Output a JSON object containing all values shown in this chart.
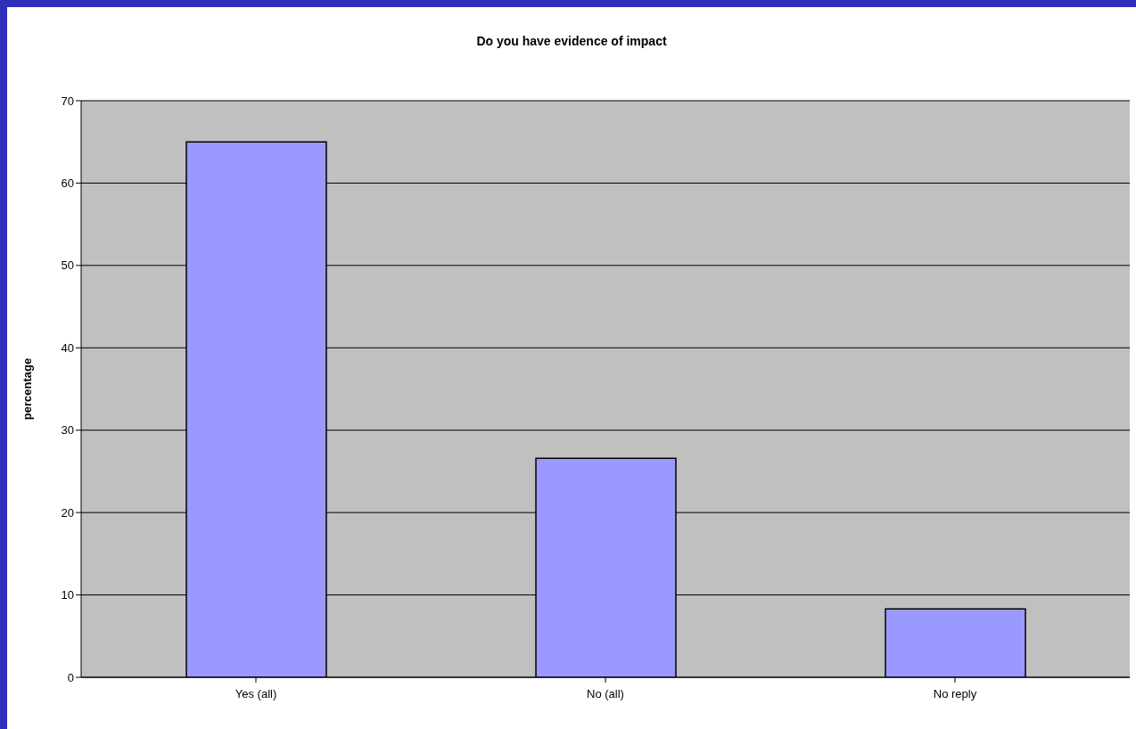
{
  "chart_data": {
    "type": "bar",
    "title": "Do you have evidence of impact",
    "ylabel": "percentage",
    "categories": [
      "Yes (all)",
      "No (all)",
      "No reply"
    ],
    "values": [
      65,
      26.6,
      8.3
    ],
    "color": "#9999ff",
    "ylim": [
      0,
      70
    ],
    "yticks": [
      0,
      10,
      20,
      30,
      40,
      50,
      60,
      70
    ],
    "grid": "y"
  }
}
